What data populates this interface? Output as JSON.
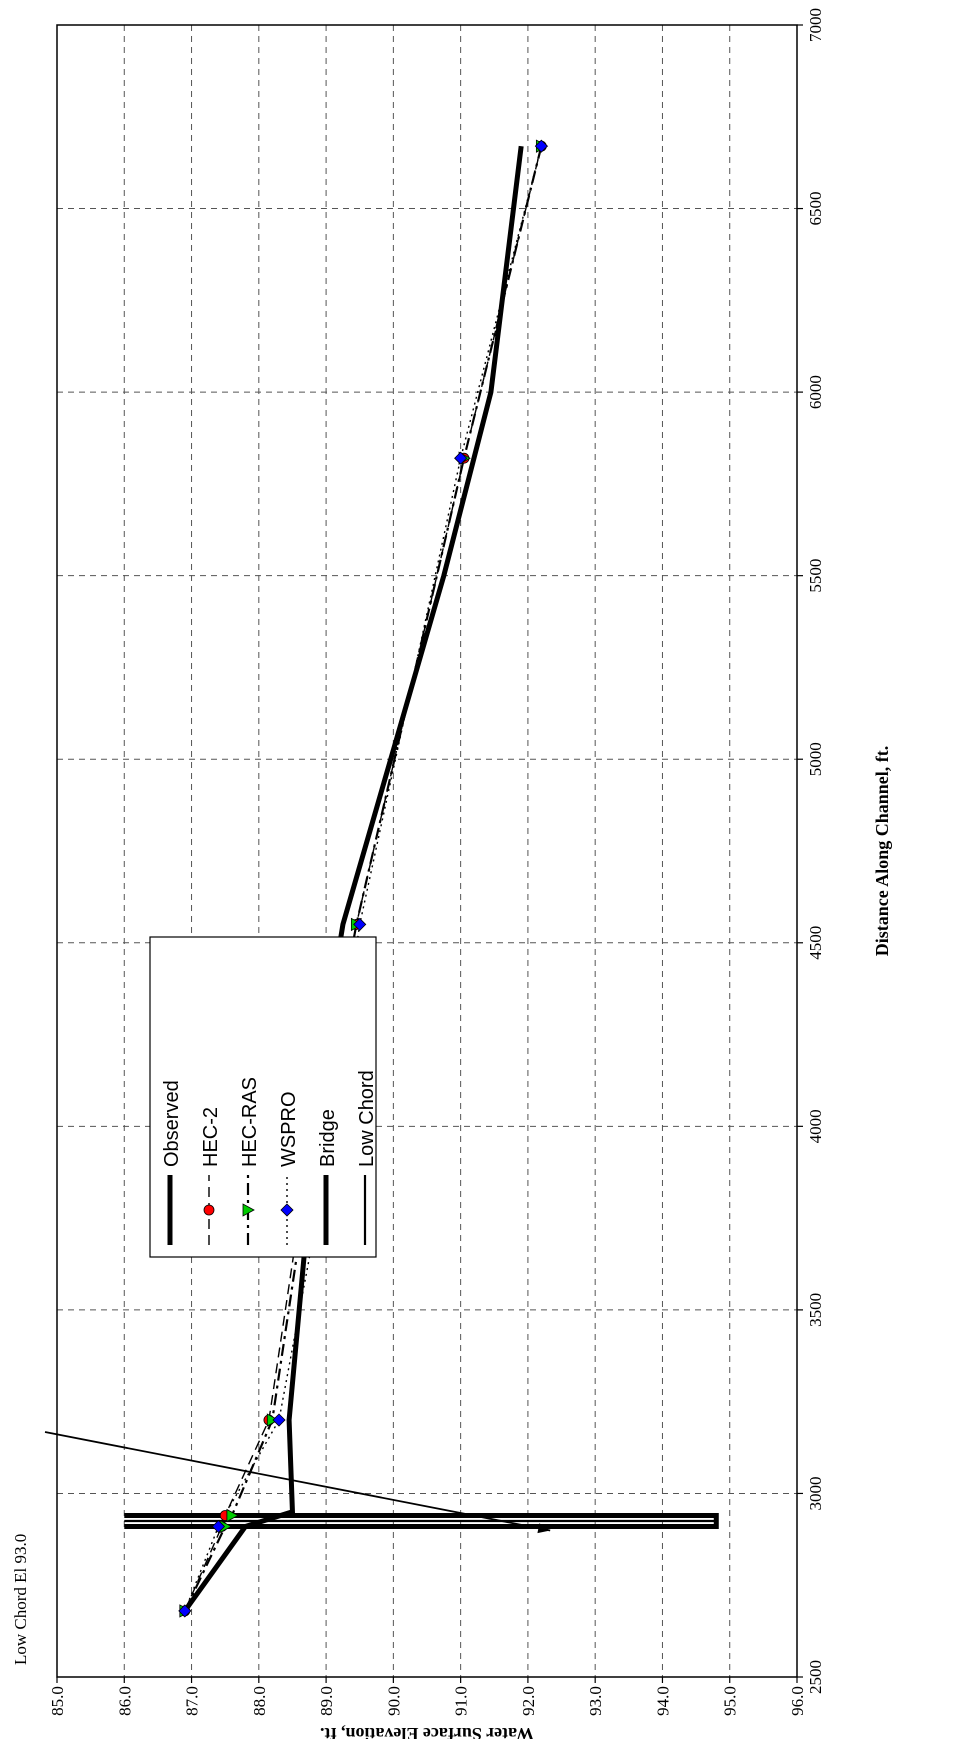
{
  "chart_data": {
    "type": "line",
    "orientation": "rotated 90 degrees counter-clockwise",
    "xlabel": "Distance Along Channel, ft.",
    "ylabel": "Water Surface Elevation, ft.",
    "xlim": [
      2500,
      7000
    ],
    "ylim": [
      85.0,
      96.0
    ],
    "x_ticks": [
      "2500",
      "3000",
      "3500",
      "4000",
      "4500",
      "5000",
      "5500",
      "6000",
      "6500",
      "7000"
    ],
    "y_ticks": [
      "85.0",
      "86.0",
      "87.0",
      "88.0",
      "89.0",
      "90.0",
      "91.0",
      "92.0",
      "93.0",
      "94.0",
      "95.0",
      "96.0"
    ],
    "grid": true,
    "legend_position": "upper-left (rotated)",
    "annotation": {
      "text": "Low Chord   El 93.0",
      "arrow_to": [
        2910,
        93.0
      ]
    },
    "series": [
      {
        "name": "Observed",
        "style": "thick-solid",
        "color": "#000000",
        "points": [
          [
            2680,
            86.9
          ],
          [
            2910,
            87.8
          ],
          [
            2950,
            88.5
          ],
          [
            3200,
            88.45
          ],
          [
            3700,
            88.7
          ],
          [
            4380,
            89.1
          ],
          [
            4550,
            89.25
          ],
          [
            5500,
            90.75
          ],
          [
            6000,
            91.45
          ],
          [
            6670,
            91.9
          ]
        ]
      },
      {
        "name": "HEC-2",
        "style": "dashed",
        "marker": "circle",
        "color": "#ff0000",
        "points": [
          [
            2680,
            86.9
          ],
          [
            2910,
            87.45
          ],
          [
            2940,
            87.5
          ],
          [
            3200,
            88.15
          ],
          [
            3690,
            88.55
          ],
          [
            4550,
            89.45
          ],
          [
            5820,
            91.05
          ],
          [
            6670,
            92.2
          ]
        ]
      },
      {
        "name": "HEC-RAS",
        "style": "dash-dot",
        "marker": "triangle",
        "color": "#00cc00",
        "points": [
          [
            2680,
            86.9
          ],
          [
            2910,
            87.5
          ],
          [
            2940,
            87.6
          ],
          [
            3200,
            88.2
          ],
          [
            3690,
            88.6
          ],
          [
            4550,
            89.45
          ],
          [
            5820,
            91.05
          ],
          [
            6670,
            92.2
          ]
        ]
      },
      {
        "name": "WSPRO",
        "style": "dotted",
        "marker": "diamond",
        "color": "#0000ff",
        "points": [
          [
            2680,
            86.9
          ],
          [
            2910,
            87.4
          ],
          [
            3200,
            88.3
          ],
          [
            3690,
            88.8
          ],
          [
            4550,
            89.5
          ],
          [
            5820,
            91.0
          ],
          [
            6670,
            92.2
          ]
        ]
      },
      {
        "name": "Bridge",
        "style": "thick-solid",
        "color": "#000000",
        "points": [
          [
            2910,
            86.0
          ],
          [
            2910,
            94.8
          ],
          [
            2940,
            94.8
          ],
          [
            2940,
            86.0
          ]
        ]
      },
      {
        "name": "Low Chord",
        "style": "solid",
        "color": "#000000",
        "points": [
          [
            2925,
            86.0
          ],
          [
            2925,
            94.8
          ]
        ]
      }
    ]
  }
}
